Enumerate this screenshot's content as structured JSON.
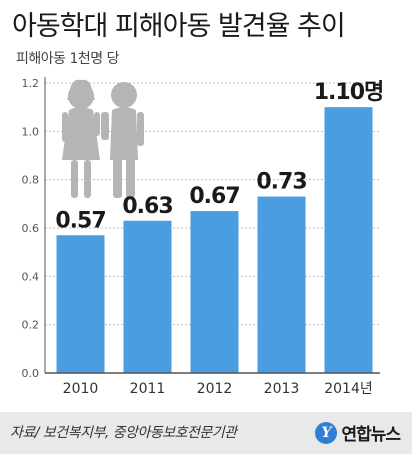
{
  "title": "아동학대 피해아동 발견율 추이",
  "unit_label": "피해아동 1천명 당",
  "source": "자료/ 보건복지부, 중앙아동보호전문기관",
  "logo": "연합뉴스",
  "logo_icon": "yonhap-logo-icon",
  "colors": {
    "bar": "#4a9de0",
    "grid": "#bdbdbd",
    "axis": "#555555",
    "figures": "#b5b5b5"
  },
  "chart_data": {
    "type": "bar",
    "categories": [
      "2010",
      "2011",
      "2012",
      "2013",
      "2014년"
    ],
    "values": [
      0.57,
      0.63,
      0.67,
      0.73,
      1.1
    ],
    "value_labels": [
      "0.57",
      "0.63",
      "0.67",
      "0.73",
      "1.10명"
    ],
    "yticks": [
      "0.0",
      "0.2",
      "0.4",
      "0.6",
      "0.8",
      "1.0",
      "1.2"
    ],
    "ylim": [
      0,
      1.2
    ],
    "grid": true
  }
}
